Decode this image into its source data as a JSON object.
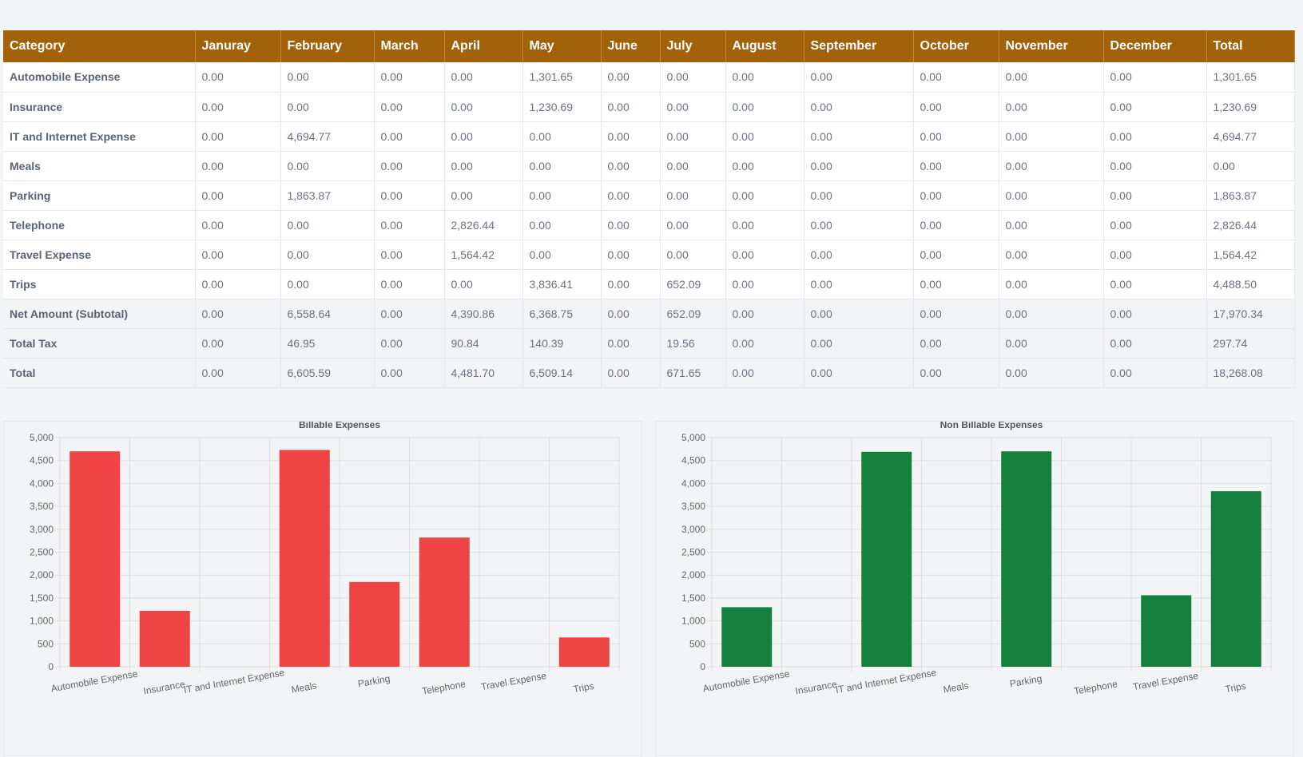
{
  "table": {
    "headers": [
      "Category",
      "Januray",
      "February",
      "March",
      "April",
      "May",
      "June",
      "July",
      "August",
      "September",
      "October",
      "November",
      "December",
      "Total"
    ],
    "rows": [
      {
        "type": "normal",
        "cells": [
          "Automobile Expense",
          "0.00",
          "0.00",
          "0.00",
          "0.00",
          "1,301.65",
          "0.00",
          "0.00",
          "0.00",
          "0.00",
          "0.00",
          "0.00",
          "0.00",
          "1,301.65"
        ]
      },
      {
        "type": "normal",
        "cells": [
          "Insurance",
          "0.00",
          "0.00",
          "0.00",
          "0.00",
          "1,230.69",
          "0.00",
          "0.00",
          "0.00",
          "0.00",
          "0.00",
          "0.00",
          "0.00",
          "1,230.69"
        ]
      },
      {
        "type": "normal",
        "cells": [
          "IT and Internet Expense",
          "0.00",
          "4,694.77",
          "0.00",
          "0.00",
          "0.00",
          "0.00",
          "0.00",
          "0.00",
          "0.00",
          "0.00",
          "0.00",
          "0.00",
          "4,694.77"
        ]
      },
      {
        "type": "normal",
        "cells": [
          "Meals",
          "0.00",
          "0.00",
          "0.00",
          "0.00",
          "0.00",
          "0.00",
          "0.00",
          "0.00",
          "0.00",
          "0.00",
          "0.00",
          "0.00",
          "0.00"
        ]
      },
      {
        "type": "normal",
        "cells": [
          "Parking",
          "0.00",
          "1,863.87",
          "0.00",
          "0.00",
          "0.00",
          "0.00",
          "0.00",
          "0.00",
          "0.00",
          "0.00",
          "0.00",
          "0.00",
          "1,863.87"
        ]
      },
      {
        "type": "normal",
        "cells": [
          "Telephone",
          "0.00",
          "0.00",
          "0.00",
          "2,826.44",
          "0.00",
          "0.00",
          "0.00",
          "0.00",
          "0.00",
          "0.00",
          "0.00",
          "0.00",
          "2,826.44"
        ]
      },
      {
        "type": "normal",
        "cells": [
          "Travel Expense",
          "0.00",
          "0.00",
          "0.00",
          "1,564.42",
          "0.00",
          "0.00",
          "0.00",
          "0.00",
          "0.00",
          "0.00",
          "0.00",
          "0.00",
          "1,564.42"
        ]
      },
      {
        "type": "normal",
        "cells": [
          "Trips",
          "0.00",
          "0.00",
          "0.00",
          "0.00",
          "3,836.41",
          "0.00",
          "652.09",
          "0.00",
          "0.00",
          "0.00",
          "0.00",
          "0.00",
          "4,488.50"
        ]
      },
      {
        "type": "summary",
        "cells": [
          "Net Amount (Subtotal)",
          "0.00",
          "6,558.64",
          "0.00",
          "4,390.86",
          "6,368.75",
          "0.00",
          "652.09",
          "0.00",
          "0.00",
          "0.00",
          "0.00",
          "0.00",
          "17,970.34"
        ]
      },
      {
        "type": "summary",
        "cells": [
          "Total Tax",
          "0.00",
          "46.95",
          "0.00",
          "90.84",
          "140.39",
          "0.00",
          "19.56",
          "0.00",
          "0.00",
          "0.00",
          "0.00",
          "0.00",
          "297.74"
        ]
      },
      {
        "type": "summary",
        "cells": [
          "Total",
          "0.00",
          "6,605.59",
          "0.00",
          "4,481.70",
          "6,509.14",
          "0.00",
          "671.65",
          "0.00",
          "0.00",
          "0.00",
          "0.00",
          "0.00",
          "18,268.08"
        ]
      }
    ]
  },
  "chart_data": [
    {
      "type": "bar",
      "title": "Billable Expenses",
      "categories": [
        "Automobile Expense",
        "Insurance",
        "IT and Internet Expense",
        "Meals",
        "Parking",
        "Telephone",
        "Travel Expense",
        "Trips"
      ],
      "values": [
        4700,
        1220,
        0,
        4730,
        1850,
        2820,
        0,
        640
      ],
      "ylim": [
        0,
        5000
      ],
      "yticks": [
        "0",
        "500",
        "1,000",
        "1,500",
        "2,000",
        "2,500",
        "3,000",
        "3,500",
        "4,000",
        "4,500",
        "5,000"
      ],
      "color": "#ef4444",
      "grid": true
    },
    {
      "type": "bar",
      "title": "Non Billable Expenses",
      "categories": [
        "Automobile Expense",
        "Insurance",
        "IT and Internet Expense",
        "Meals",
        "Parking",
        "Telephone",
        "Travel Expense",
        "Trips"
      ],
      "values": [
        1300,
        0,
        4690,
        0,
        4700,
        0,
        1560,
        3830
      ],
      "ylim": [
        0,
        5000
      ],
      "yticks": [
        "0",
        "500",
        "1,000",
        "1,500",
        "2,000",
        "2,500",
        "3,000",
        "3,500",
        "4,000",
        "4,500",
        "5,000"
      ],
      "color": "#15803d",
      "grid": true
    }
  ]
}
